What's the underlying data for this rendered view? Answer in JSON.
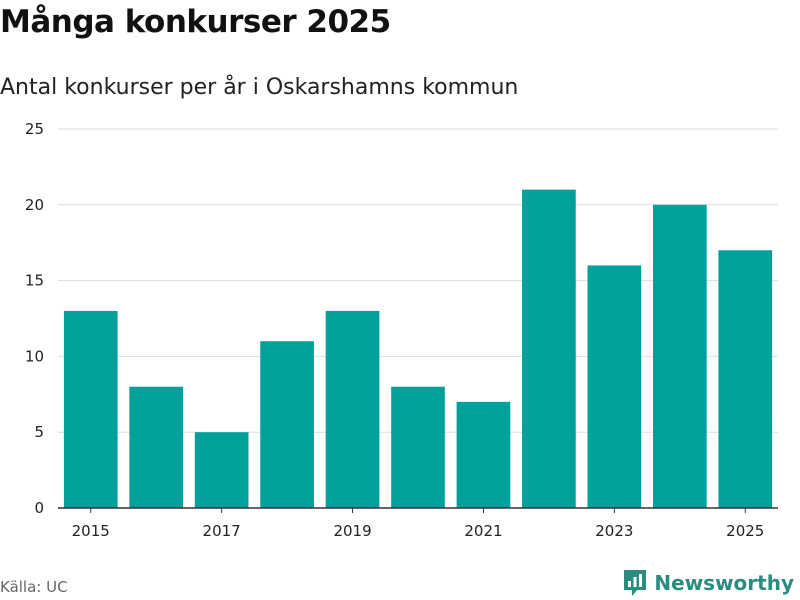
{
  "header": {
    "title": "Många konkurser 2025",
    "subtitle": "Antal konkurser per år i Oskarshamns kommun"
  },
  "footer": {
    "source": "Källa: UC",
    "brand": "Newsworthy",
    "brand_icon": "newsworthy-logo-icon"
  },
  "colors": {
    "bar": "#00a19a",
    "grid": "#dddddd",
    "axis": "#333333",
    "brand": "#2a8c7f"
  },
  "chart_data": {
    "type": "bar",
    "title": "Många konkurser 2025",
    "subtitle": "Antal konkurser per år i Oskarshamns kommun",
    "categories": [
      "2015",
      "2016",
      "2017",
      "2018",
      "2019",
      "2020",
      "2021",
      "2022",
      "2023",
      "2024",
      "2025"
    ],
    "values": [
      13,
      8,
      5,
      11,
      13,
      8,
      7,
      21,
      16,
      20,
      17
    ],
    "x_tick_labels": [
      "2015",
      "2017",
      "2019",
      "2021",
      "2023",
      "2025"
    ],
    "y_ticks": [
      0,
      5,
      10,
      15,
      20,
      25
    ],
    "ylim": [
      0,
      25
    ],
    "xlabel": "",
    "ylabel": "",
    "grid": true,
    "legend": "none"
  }
}
